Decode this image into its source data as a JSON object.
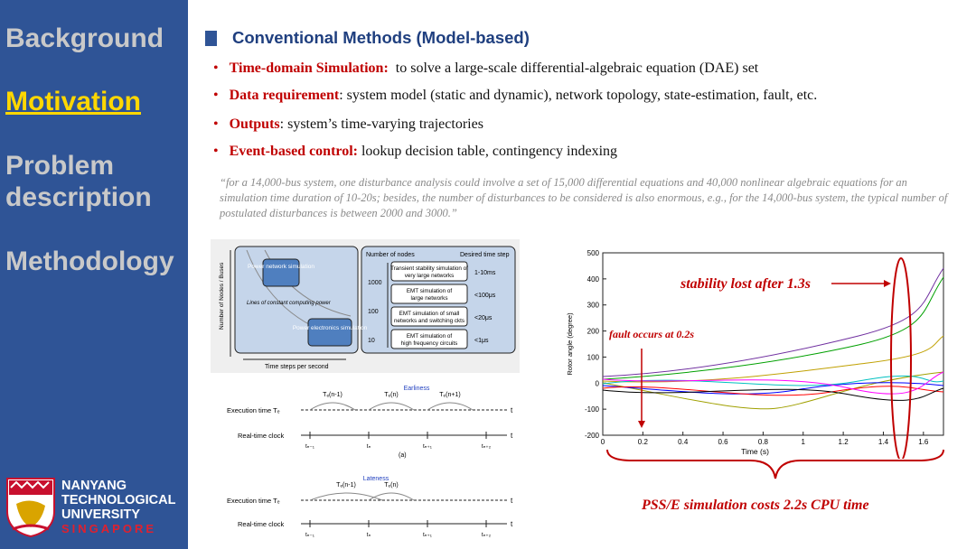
{
  "sidebar": {
    "nav": [
      "Background",
      "Motivation",
      "Problem description",
      "Methodology"
    ],
    "active": 1,
    "logo": {
      "lines": [
        "NANYANG",
        "TECHNOLOGICAL",
        "UNIVERSITY"
      ],
      "sub": "SINGAPORE"
    }
  },
  "header": {
    "title": "Conventional Methods (Model-based)"
  },
  "bullets": [
    {
      "label": "Time-domain Simulation:",
      "text": "to solve a large-scale differential-algebraic equation (DAE) set"
    },
    {
      "label": "Data requirement",
      "text": ": system model (static and dynamic), network topology, state-estimation, fault, etc."
    },
    {
      "label": "Outputs",
      "text": ": system’s time-varying trajectories"
    },
    {
      "label": "Event-based control:",
      "text": "lookup decision table, contingency indexing"
    }
  ],
  "quote": "“for a 14,000-bus system, one disturbance analysis could involve a set of 15,000 differential equations and 40,000 nonlinear algebraic equations for an simulation time duration of 10-20s; besides, the number of disturbances to be considered is also enormous, e.g., for the 14,000-bus system, the typical number of postulated disturbances is between 2000 and 3000.”",
  "figure1": {
    "y_axis": "Number of Nodes / Buses",
    "x_axis": "Time steps per second",
    "box_top": "Power network simulation",
    "box_bottom": "Power electronics simulation",
    "curve_label": "Lines of constant computing power",
    "col_nodes": "Number of nodes",
    "col_step": "Desired time step",
    "node_scale": [
      "1000",
      "100",
      "10"
    ],
    "rows": [
      {
        "text": "Transient stability simulation of very large networks",
        "step": "1-10ms"
      },
      {
        "text": "EMT simulation of large networks",
        "step": "<100μs"
      },
      {
        "text": "EMT simulation of small networks and switching ckts",
        "step": "<20μs"
      },
      {
        "text": "EMT simulation of high frequency circuits",
        "step": "<1μs"
      }
    ]
  },
  "figure2": {
    "exec_label": "Execution time Tₑ",
    "clock_label": "Real-time clock",
    "axis": "t",
    "ticks": [
      "tₙ₋₁",
      "tₙ",
      "tₙ₊₁",
      "tₙ₊₂"
    ],
    "a": {
      "arcs": [
        "Tₑ(n-1)",
        "Tₑ(n)",
        "Tₑ(n+1)"
      ],
      "note": "Earliness",
      "caption": "(a)"
    },
    "b": {
      "arcs": [
        "Tₑ(n-1)",
        "Tₑ(n)"
      ],
      "note": "Lateness"
    }
  },
  "plot": {
    "y_label": "Rotor angle (degree)",
    "x_label": "Time (s)",
    "xlim": [
      0,
      1.7
    ],
    "ylim": [
      -200,
      500
    ],
    "xticks": [
      0,
      0.2,
      0.4,
      0.6,
      0.8,
      1,
      1.2,
      1.4,
      1.6
    ],
    "yticks": [
      -200,
      -100,
      0,
      100,
      200,
      300,
      400,
      500
    ],
    "annotation_lost": "stability lost after 1.3s",
    "annotation_fault": "fault occurs at 0.2s",
    "caption": "PSS/E simulation costs 2.2s CPU time"
  }
}
